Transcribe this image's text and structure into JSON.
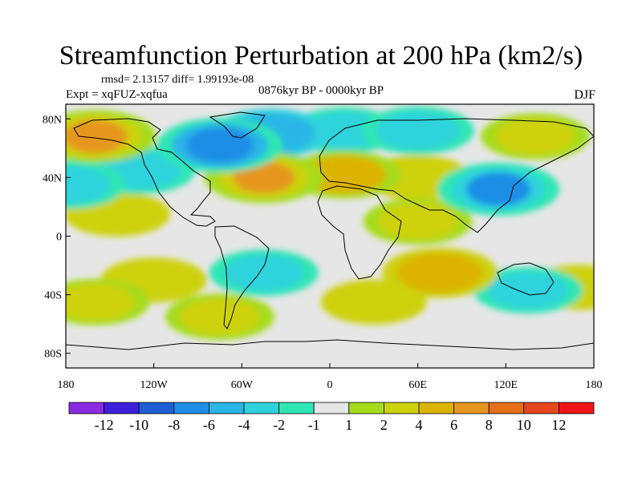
{
  "chart_data": {
    "type": "heatmap",
    "title": "Streamfunction Perturbation at 200 hPa (km2/s)",
    "stats": "rmsd= 2.13157 diff= 1.99193e-08",
    "period": "0876kyr BP - 0000kyr BP",
    "experiment": "Expt = xqFUZ-xqfua",
    "season": "DJF",
    "x_ticks": [
      "180",
      "120W",
      "60W",
      "0",
      "60E",
      "120E",
      "180"
    ],
    "x_tick_values": [
      -180,
      -120,
      -60,
      0,
      60,
      120,
      180
    ],
    "y_ticks": [
      "80N",
      "40N",
      "0",
      "40S",
      "80S"
    ],
    "y_tick_values": [
      80,
      40,
      0,
      -40,
      -80
    ],
    "xlim": [
      -180,
      180
    ],
    "ylim": [
      -90,
      90
    ],
    "levels": [
      -12,
      -10,
      -8,
      -6,
      -4,
      -2,
      -1,
      1,
      2,
      4,
      6,
      8,
      10,
      12
    ],
    "colorbar_labels": [
      "-12",
      "-10",
      "-8",
      "-6",
      "-4",
      "-2",
      "-1",
      "1",
      "2",
      "4",
      "6",
      "8",
      "10",
      "12"
    ],
    "colors": [
      "#8a2be2",
      "#3c1edb",
      "#1e5fd6",
      "#1e8ee6",
      "#29b5e6",
      "#2ed3dc",
      "#2ee6b4",
      "#e6e6e6",
      "#a5dc1a",
      "#cdd20a",
      "#dcb400",
      "#e6961e",
      "#e66e14",
      "#e6461e",
      "#f01414"
    ],
    "field_blobs": [
      {
        "lon": -160,
        "lat": 68,
        "value": 7
      },
      {
        "lon": -75,
        "lat": 62,
        "value": -8
      },
      {
        "lon": -40,
        "lat": 70,
        "value": -5
      },
      {
        "lon": 10,
        "lat": 72,
        "value": -3
      },
      {
        "lon": 60,
        "lat": 72,
        "value": -4
      },
      {
        "lon": 140,
        "lat": 68,
        "value": 3
      },
      {
        "lon": -130,
        "lat": 45,
        "value": -4
      },
      {
        "lon": -45,
        "lat": 40,
        "value": 6
      },
      {
        "lon": 10,
        "lat": 42,
        "value": 4
      },
      {
        "lon": 60,
        "lat": 40,
        "value": 2
      },
      {
        "lon": -178,
        "lat": 35,
        "value": -4
      },
      {
        "lon": 115,
        "lat": 32,
        "value": -7
      },
      {
        "lon": -145,
        "lat": 15,
        "value": 2
      },
      {
        "lon": 60,
        "lat": 10,
        "value": 3
      },
      {
        "lon": -45,
        "lat": -25,
        "value": -3
      },
      {
        "lon": -120,
        "lat": -30,
        "value": 2
      },
      {
        "lon": 75,
        "lat": -25,
        "value": 5
      },
      {
        "lon": 135,
        "lat": -37,
        "value": -3
      },
      {
        "lon": -160,
        "lat": -45,
        "value": 3
      },
      {
        "lon": -75,
        "lat": -55,
        "value": 3
      },
      {
        "lon": 30,
        "lat": -45,
        "value": 2
      },
      {
        "lon": 170,
        "lat": -35,
        "value": 2
      }
    ]
  }
}
